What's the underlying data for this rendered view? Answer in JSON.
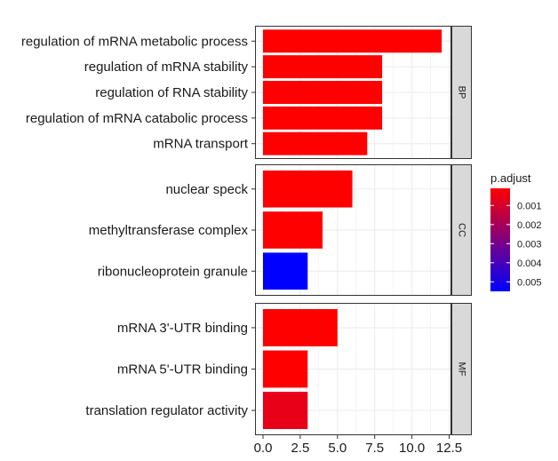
{
  "chart_data": {
    "type": "bar",
    "orientation": "horizontal",
    "xlabel": "",
    "ylabel": "",
    "xlim": [
      0,
      13
    ],
    "xticks": [
      "0.0",
      "2.5",
      "5.0",
      "7.5",
      "10.0",
      "12.5"
    ],
    "xtick_values": [
      0,
      2.5,
      5,
      7.5,
      10,
      12.5
    ],
    "grid": true,
    "color_scale": {
      "title": "p.adjust",
      "low_color": "#ff0000",
      "high_color": "#0000ff",
      "min": 0.0001,
      "max": 0.0055,
      "ticks": [
        "0.001",
        "0.002",
        "0.003",
        "0.004",
        "0.005"
      ],
      "tick_values": [
        0.001,
        0.002,
        0.003,
        0.004,
        0.005
      ],
      "legend_position": "right"
    },
    "facets": [
      {
        "label": "BP",
        "bars": [
          {
            "term": "regulation of mRNA metabolic process",
            "value": 12,
            "p_adjust": 0.0001
          },
          {
            "term": "regulation of mRNA stability",
            "value": 8,
            "p_adjust": 0.0001
          },
          {
            "term": "regulation of RNA stability",
            "value": 8,
            "p_adjust": 0.0001
          },
          {
            "term": "regulation of mRNA catabolic process",
            "value": 8,
            "p_adjust": 0.0001
          },
          {
            "term": "mRNA transport",
            "value": 7,
            "p_adjust": 0.0001
          }
        ]
      },
      {
        "label": "CC",
        "bars": [
          {
            "term": "nuclear speck",
            "value": 6,
            "p_adjust": 0.0001
          },
          {
            "term": "methyltransferase complex",
            "value": 4,
            "p_adjust": 0.0001
          },
          {
            "term": "ribonucleoprotein granule",
            "value": 3,
            "p_adjust": 0.0055
          }
        ]
      },
      {
        "label": "MF",
        "bars": [
          {
            "term": "mRNA 3'-UTR binding",
            "value": 5,
            "p_adjust": 0.0001
          },
          {
            "term": "mRNA 5'-UTR binding",
            "value": 3,
            "p_adjust": 0.0001
          },
          {
            "term": "translation regulator activity",
            "value": 3,
            "p_adjust": 0.0006
          }
        ]
      }
    ]
  }
}
